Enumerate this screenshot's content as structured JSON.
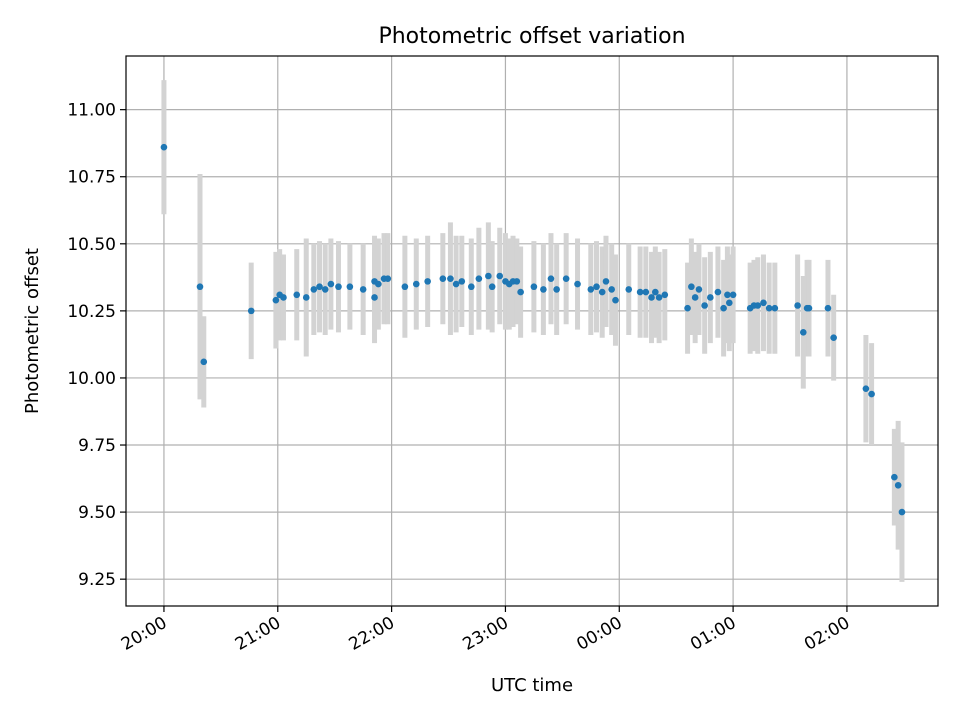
{
  "chart_data": {
    "type": "scatter",
    "title": "Photometric offset variation",
    "xlabel": "UTC time",
    "ylabel": "Photometric offset",
    "grid": true,
    "xlim": [
      "19:40",
      "02:48"
    ],
    "ylim": [
      9.15,
      11.2
    ],
    "x_ticks": [
      "20:00",
      "21:00",
      "22:00",
      "23:00",
      "00:00",
      "01:00",
      "02:00"
    ],
    "y_ticks": [
      "9.25",
      "9.50",
      "9.75",
      "10.00",
      "10.25",
      "10.50",
      "10.75",
      "11.00"
    ],
    "colors": {
      "marker": "#1f77b4",
      "errorbar": "#d3d3d3",
      "grid": "#b0b0b0"
    },
    "series": [
      {
        "marker": "dot",
        "errorbars": true,
        "x": [
          "20:00",
          "20:19",
          "20:21",
          "20:46",
          "20:59",
          "21:01",
          "21:03",
          "21:10",
          "21:15",
          "21:19",
          "21:22",
          "21:25",
          "21:28",
          "21:32",
          "21:38",
          "21:45",
          "21:51",
          "21:51",
          "21:53",
          "21:56",
          "21:58",
          "22:07",
          "22:13",
          "22:19",
          "22:27",
          "22:31",
          "22:34",
          "22:37",
          "22:42",
          "22:46",
          "22:51",
          "22:53",
          "22:57",
          "23:00",
          "23:02",
          "23:04",
          "23:06",
          "23:08",
          "23:15",
          "23:20",
          "23:24",
          "23:27",
          "23:32",
          "23:38",
          "23:45",
          "23:48",
          "23:51",
          "23:53",
          "23:56",
          "23:58",
          "00:05",
          "00:11",
          "00:14",
          "00:17",
          "00:19",
          "00:21",
          "00:24",
          "00:36",
          "00:38",
          "00:40",
          "00:42",
          "00:45",
          "00:48",
          "00:52",
          "00:55",
          "00:57",
          "00:58",
          "01:00",
          "01:09",
          "01:11",
          "01:13",
          "01:16",
          "01:19",
          "01:22",
          "01:34",
          "01:37",
          "01:39",
          "01:40",
          "01:50",
          "01:53",
          "02:10",
          "02:13",
          "02:25",
          "02:27",
          "02:29"
        ],
        "y": [
          10.86,
          10.34,
          10.06,
          10.25,
          10.29,
          10.31,
          10.3,
          10.31,
          10.3,
          10.33,
          10.34,
          10.33,
          10.35,
          10.34,
          10.34,
          10.33,
          10.36,
          10.3,
          10.35,
          10.37,
          10.37,
          10.34,
          10.35,
          10.36,
          10.37,
          10.37,
          10.35,
          10.36,
          10.34,
          10.37,
          10.38,
          10.34,
          10.38,
          10.36,
          10.35,
          10.36,
          10.36,
          10.32,
          10.34,
          10.33,
          10.37,
          10.33,
          10.37,
          10.35,
          10.33,
          10.34,
          10.32,
          10.36,
          10.33,
          10.29,
          10.33,
          10.32,
          10.32,
          10.3,
          10.32,
          10.3,
          10.31,
          10.26,
          10.34,
          10.3,
          10.33,
          10.27,
          10.3,
          10.32,
          10.26,
          10.31,
          10.28,
          10.31,
          10.26,
          10.27,
          10.27,
          10.28,
          10.26,
          10.26,
          10.27,
          10.17,
          10.26,
          10.26,
          10.26,
          10.15,
          9.96,
          9.94,
          9.63,
          9.6,
          9.5
        ],
        "err": [
          0.25,
          0.42,
          0.17,
          0.18,
          0.18,
          0.17,
          0.16,
          0.17,
          0.22,
          0.17,
          0.17,
          0.17,
          0.17,
          0.17,
          0.16,
          0.17,
          0.17,
          0.17,
          0.17,
          0.17,
          0.17,
          0.19,
          0.17,
          0.17,
          0.17,
          0.21,
          0.18,
          0.17,
          0.18,
          0.19,
          0.2,
          0.17,
          0.18,
          0.18,
          0.17,
          0.17,
          0.16,
          0.17,
          0.17,
          0.17,
          0.17,
          0.17,
          0.17,
          0.17,
          0.17,
          0.17,
          0.17,
          0.17,
          0.17,
          0.17,
          0.17,
          0.17,
          0.17,
          0.17,
          0.17,
          0.17,
          0.17,
          0.17,
          0.18,
          0.17,
          0.17,
          0.18,
          0.17,
          0.17,
          0.18,
          0.18,
          0.18,
          0.18,
          0.17,
          0.17,
          0.18,
          0.18,
          0.17,
          0.17,
          0.19,
          0.21,
          0.18,
          0.18,
          0.18,
          0.16,
          0.2,
          0.19,
          0.18,
          0.24,
          0.26
        ]
      }
    ]
  }
}
